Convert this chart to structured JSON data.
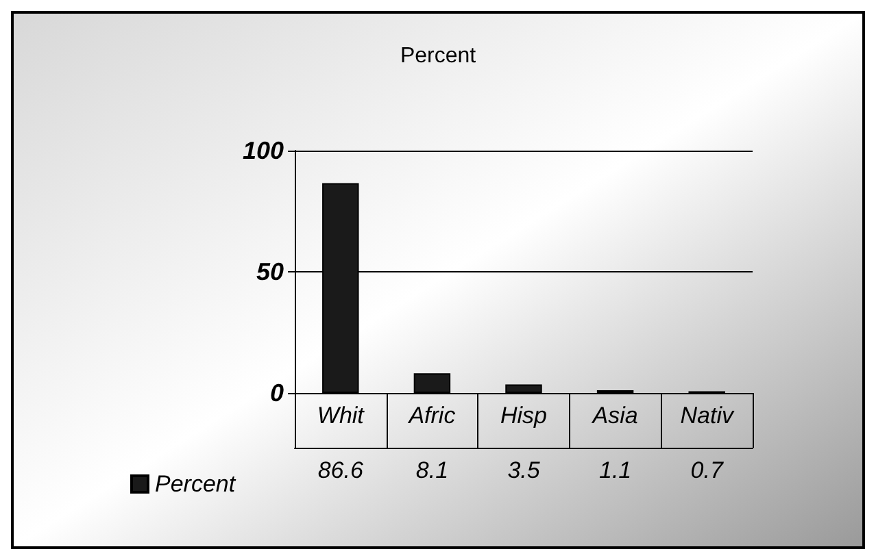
{
  "chart_data": {
    "type": "bar",
    "title": "Percent",
    "categories": [
      "Whit",
      "Afric",
      "Hisp",
      "Asia",
      "Nativ"
    ],
    "series": [
      {
        "name": "Percent",
        "color": "#1a1a1a",
        "values": [
          86.6,
          8.1,
          3.5,
          1.1,
          0.7
        ]
      }
    ],
    "ylim": [
      0,
      100
    ],
    "yticks": [
      0,
      50,
      100
    ],
    "grid": "y",
    "legend": "bottom left",
    "data_labels": true
  }
}
